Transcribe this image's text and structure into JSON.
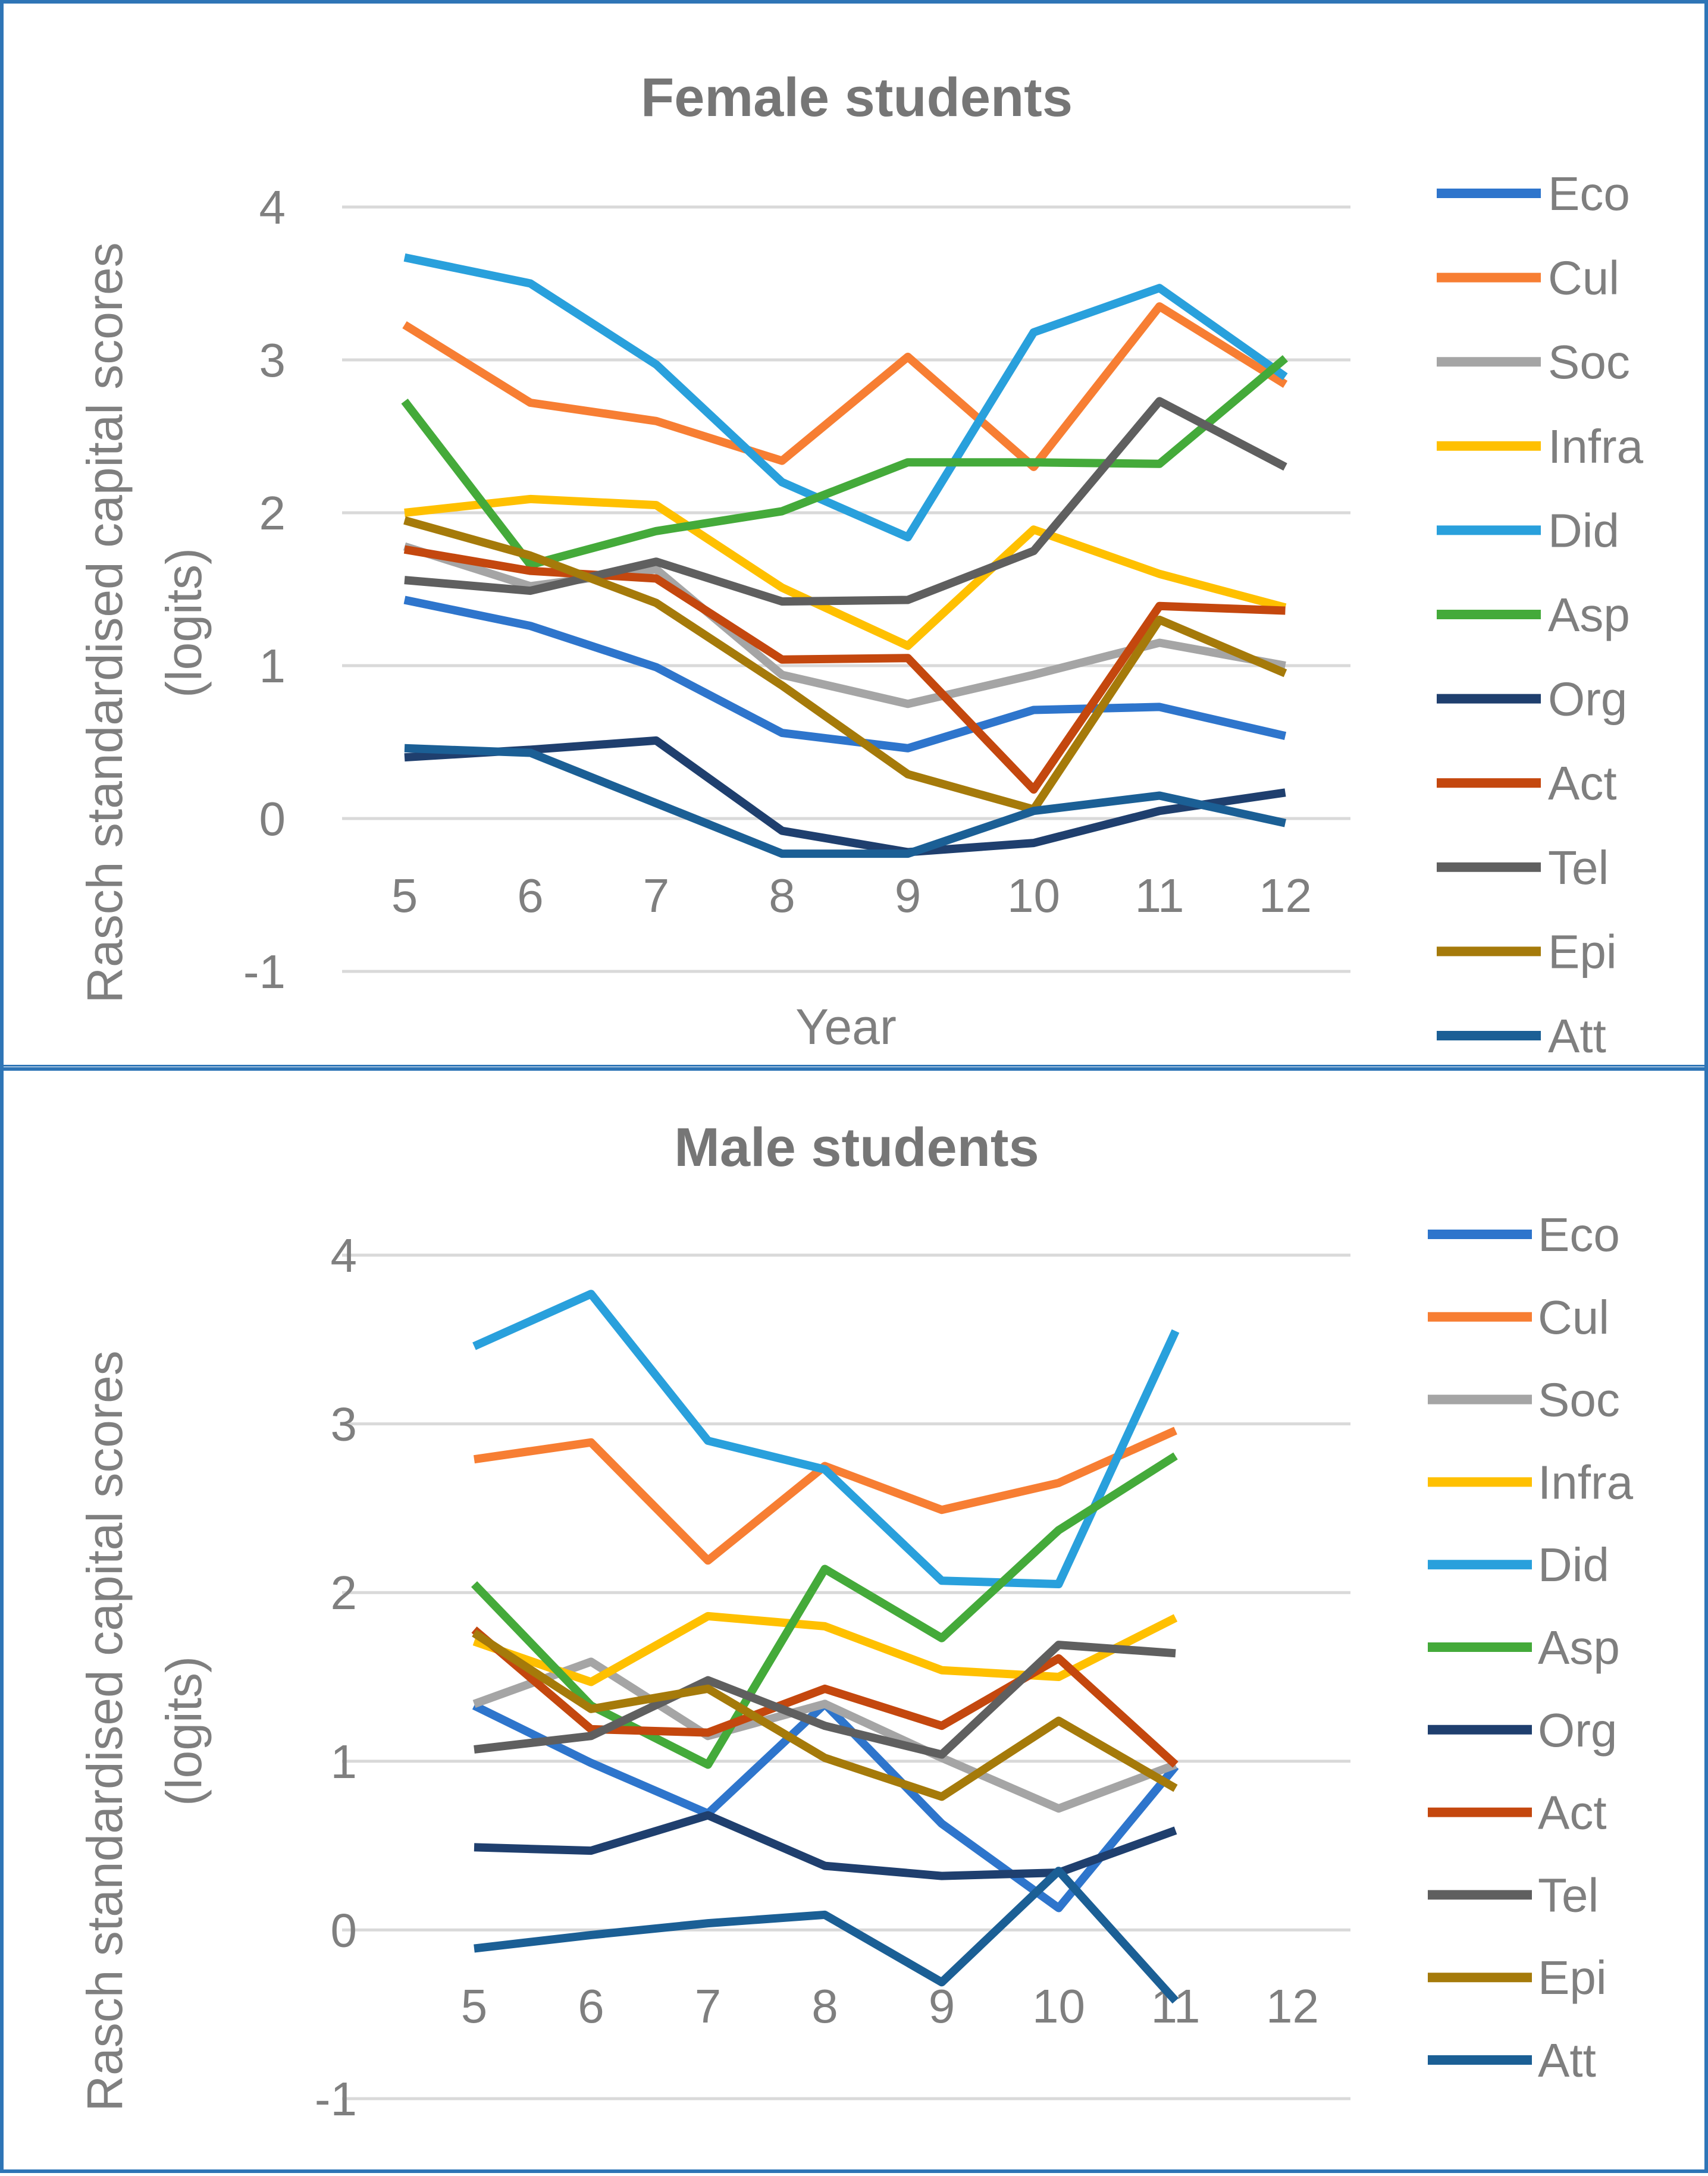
{
  "chart_data": [
    {
      "type": "line",
      "title": "Female students",
      "xlabel": "Year",
      "ylabel": "Rasch standardised capital scores (logits)",
      "ylabel_lines": [
        "Rasch standardised capital scores",
        "(logits)"
      ],
      "categories": [
        "5",
        "6",
        "7",
        "8",
        "9",
        "10",
        "11",
        "12"
      ],
      "yticks": [
        "4",
        "3",
        "2",
        "1",
        "0",
        "-1"
      ],
      "ylim": [
        -1,
        4
      ],
      "grid": true,
      "legend_position": "right",
      "series": [
        {
          "name": "Eco",
          "color": "#2e75cc",
          "values": [
            1.43,
            1.26,
            0.99,
            0.56,
            0.46,
            0.71,
            0.73,
            0.54
          ]
        },
        {
          "name": "Cul",
          "color": "#f77e33",
          "values": [
            3.23,
            2.72,
            2.6,
            2.34,
            3.02,
            2.3,
            3.35,
            2.84
          ]
        },
        {
          "name": "Soc",
          "color": "#a5a5a5",
          "values": [
            1.78,
            1.52,
            1.63,
            0.94,
            0.75,
            0.94,
            1.15,
            1.0
          ]
        },
        {
          "name": "Infra",
          "color": "#ffc000",
          "values": [
            2.0,
            2.09,
            2.05,
            1.51,
            1.13,
            1.89,
            1.6,
            1.38
          ]
        },
        {
          "name": "Did",
          "color": "#29a0dc",
          "values": [
            3.67,
            3.5,
            2.97,
            2.2,
            1.84,
            3.18,
            3.47,
            2.89
          ]
        },
        {
          "name": "Asp",
          "color": "#44aa3a",
          "values": [
            2.73,
            1.66,
            1.88,
            2.01,
            2.33,
            2.33,
            2.32,
            3.01
          ]
        },
        {
          "name": "Org",
          "color": "#1f3f6e",
          "values": [
            0.4,
            0.45,
            0.51,
            -0.08,
            -0.22,
            -0.16,
            0.05,
            0.17
          ]
        },
        {
          "name": "Act",
          "color": "#c4470e",
          "values": [
            1.76,
            1.62,
            1.57,
            1.04,
            1.05,
            0.19,
            1.39,
            1.36
          ]
        },
        {
          "name": "Tel",
          "color": "#5f5f5f",
          "values": [
            1.56,
            1.49,
            1.68,
            1.42,
            1.43,
            1.75,
            2.73,
            2.3
          ]
        },
        {
          "name": "Epi",
          "color": "#a57a0a",
          "values": [
            1.95,
            1.72,
            1.41,
            0.87,
            0.29,
            0.06,
            1.3,
            0.95
          ]
        },
        {
          "name": "Att",
          "color": "#1b5f95",
          "values": [
            0.46,
            0.43,
            0.1,
            -0.23,
            -0.23,
            0.05,
            0.15,
            -0.03
          ]
        }
      ]
    },
    {
      "type": "line",
      "title": "Male students",
      "xlabel": "",
      "ylabel": "Rasch standardised capital scores (logits)",
      "ylabel_lines": [
        "Rasch standardised capital scores",
        "(logits)"
      ],
      "categories": [
        "5",
        "6",
        "7",
        "8",
        "9",
        "10",
        "11",
        "12"
      ],
      "yticks": [
        "4",
        "3",
        "2",
        "1",
        "0",
        "-1"
      ],
      "ylim": [
        -1,
        4
      ],
      "grid": true,
      "legend_position": "right",
      "series": [
        {
          "name": "Eco",
          "color": "#2e75cc",
          "values": [
            1.33,
            0.99,
            0.69,
            1.34,
            0.63,
            0.13,
            0.97,
            null
          ]
        },
        {
          "name": "Cul",
          "color": "#f77e33",
          "values": [
            2.79,
            2.89,
            2.19,
            2.75,
            2.49,
            2.65,
            2.96,
            null
          ]
        },
        {
          "name": "Soc",
          "color": "#a5a5a5",
          "values": [
            1.34,
            1.59,
            1.15,
            1.34,
            1.02,
            0.72,
            0.98,
            null
          ]
        },
        {
          "name": "Infra",
          "color": "#ffc000",
          "values": [
            1.71,
            1.47,
            1.86,
            1.8,
            1.54,
            1.5,
            1.85,
            null
          ]
        },
        {
          "name": "Did",
          "color": "#29a0dc",
          "values": [
            3.46,
            3.77,
            2.9,
            2.73,
            2.07,
            2.05,
            3.55,
            null
          ]
        },
        {
          "name": "Asp",
          "color": "#44aa3a",
          "values": [
            2.05,
            1.33,
            0.98,
            2.14,
            1.73,
            2.37,
            2.81,
            null
          ]
        },
        {
          "name": "Org",
          "color": "#1f3f6e",
          "values": [
            0.49,
            0.47,
            0.68,
            0.38,
            0.32,
            0.34,
            0.59,
            null
          ]
        },
        {
          "name": "Act",
          "color": "#c4470e",
          "values": [
            1.78,
            1.19,
            1.17,
            1.43,
            1.21,
            1.61,
            0.98,
            null
          ]
        },
        {
          "name": "Tel",
          "color": "#5f5f5f",
          "values": [
            1.07,
            1.15,
            1.48,
            1.21,
            1.04,
            1.69,
            1.64,
            null
          ]
        },
        {
          "name": "Epi",
          "color": "#a57a0a",
          "values": [
            1.76,
            1.31,
            1.43,
            1.02,
            0.79,
            1.24,
            0.84,
            null
          ]
        },
        {
          "name": "Att",
          "color": "#1b5f95",
          "values": [
            -0.11,
            -0.03,
            0.04,
            0.09,
            -0.31,
            0.35,
            -0.42,
            null
          ]
        }
      ]
    }
  ]
}
